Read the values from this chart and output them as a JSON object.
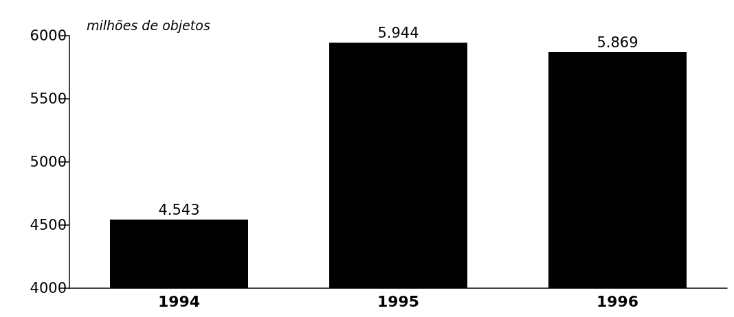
{
  "chart_data": {
    "type": "bar",
    "ylabel": "milhões de objetos",
    "categories": [
      "1994",
      "1995",
      "1996"
    ],
    "values": [
      4543,
      5944,
      5869
    ],
    "value_labels": [
      "4.543",
      "5.944",
      "5.869"
    ],
    "color": "#000000",
    "ylim": [
      4000,
      6000
    ],
    "yticks": [
      4000,
      4500,
      5000,
      5500,
      6000
    ],
    "grid": false
  }
}
